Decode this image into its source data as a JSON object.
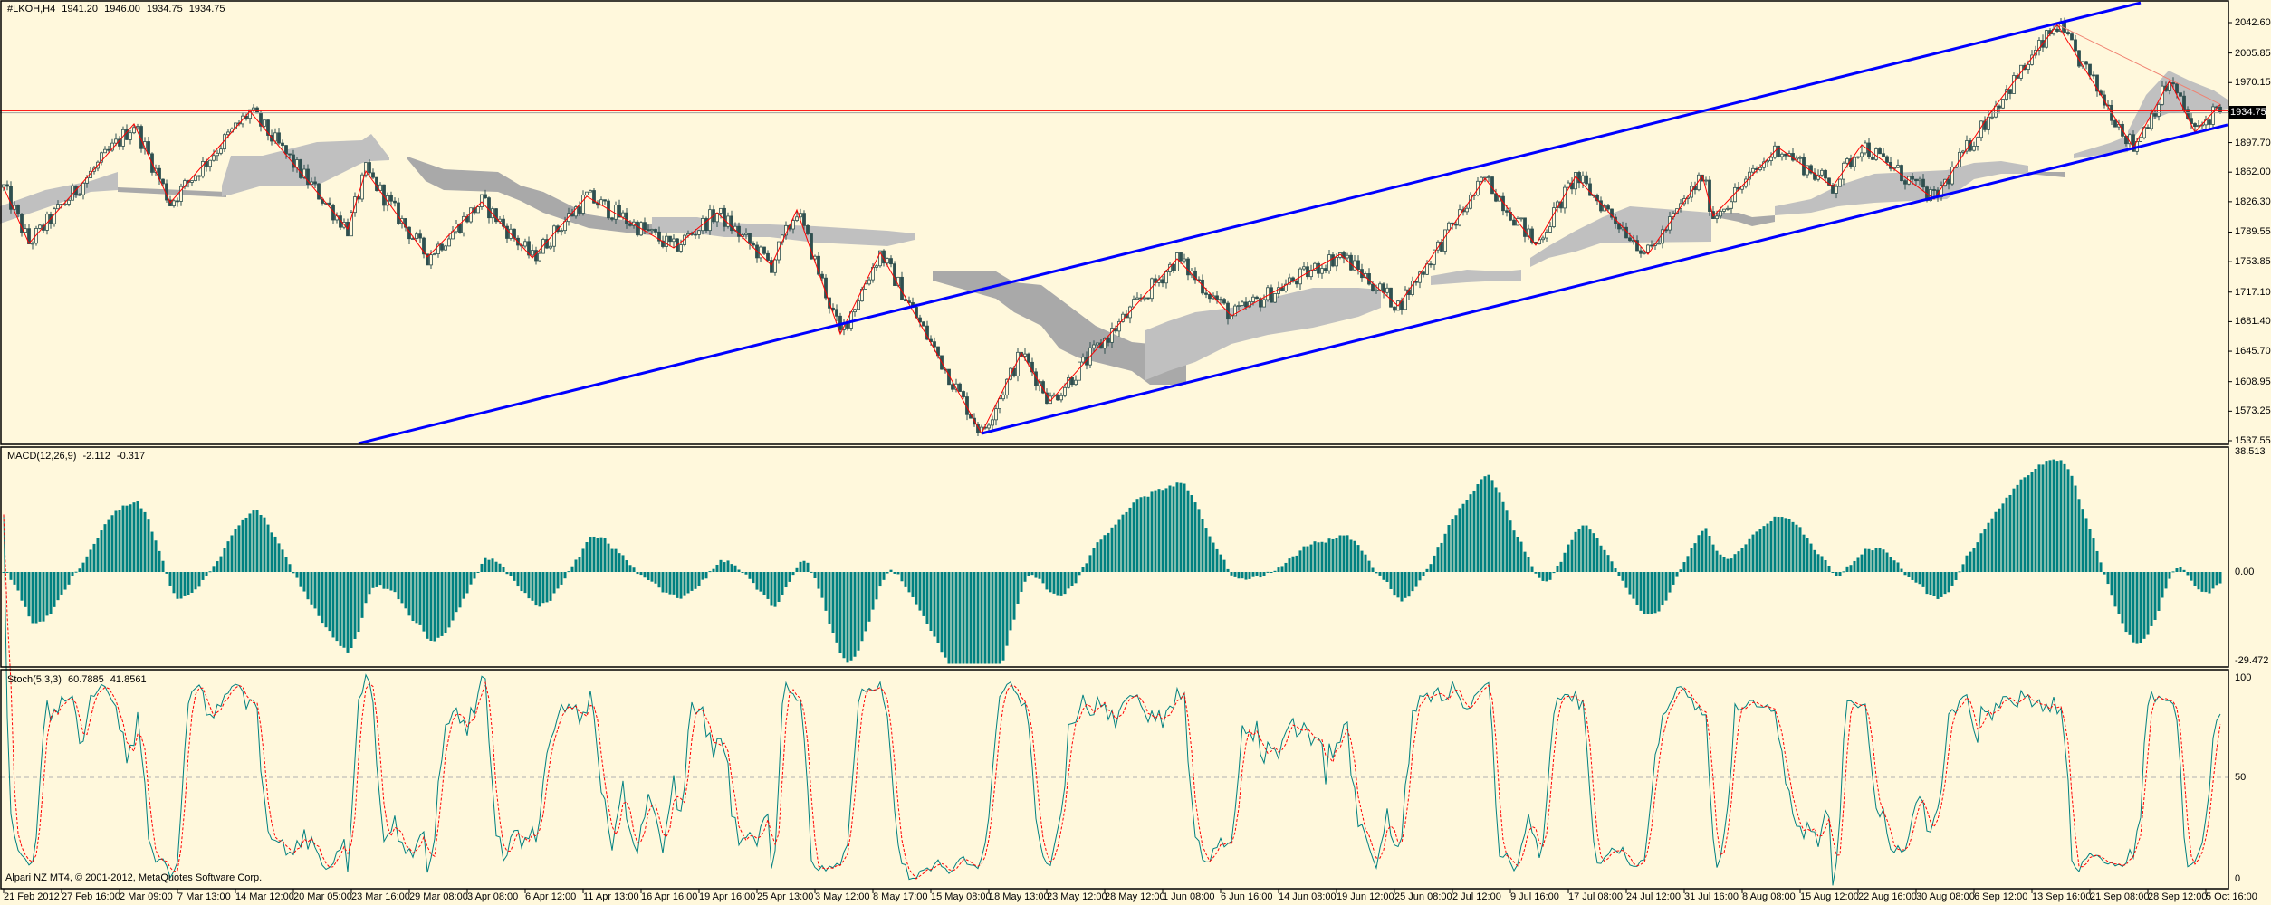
{
  "header": {
    "symbol": "#LKOH,H4",
    "open": "1941.20",
    "high": "1946.00",
    "low": "1934.75",
    "close": "1934.75"
  },
  "copyright": "Alpari NZ MT4, © 2001-2012, MetaQuotes Software Corp.",
  "colors": {
    "background": "#fff8dc",
    "candle": "#2f4f4f",
    "zigzag": "#ff0000",
    "channel": "#0000ff",
    "price_line": "#ff0000",
    "cloud_light": "#c0c0c0",
    "cloud_dark": "#a9a9a9",
    "macd": "#008080",
    "stoch_main": "#008080",
    "stoch_signal": "#ff0000"
  },
  "chart_data": [
    {
      "type": "candlestick",
      "title": "#LKOH,H4",
      "ylim": [
        1537.55,
        2042.6
      ],
      "y_ticks": [
        "2042.60",
        "2005.85",
        "1970.15",
        "1934.75",
        "1897.70",
        "1862.00",
        "1826.30",
        "1789.55",
        "1753.85",
        "1717.10",
        "1681.40",
        "1645.70",
        "1608.95",
        "1573.25",
        "1537.55"
      ],
      "current_price": "1934.75",
      "x_tick_labels": [
        "21 Feb 2012",
        "27 Feb 16:00",
        "2 Mar 09:00",
        "7 Mar 13:00",
        "14 Mar 12:00",
        "20 Mar 05:00",
        "23 Mar 16:00",
        "29 Mar 08:00",
        "3 Apr 08:00",
        "6 Apr 12:00",
        "11 Apr 13:00",
        "16 Apr 16:00",
        "19 Apr 16:00",
        "25 Apr 13:00",
        "3 May 12:00",
        "8 May 17:00",
        "15 May 08:00",
        "18 May 13:00",
        "23 May 12:00",
        "28 May 12:00",
        "1 Jun 08:00",
        "6 Jun 16:00",
        "14 Jun 08:00",
        "19 Jun 12:00",
        "25 Jun 08:00",
        "2 Jul 12:00",
        "9 Jul 16:00",
        "17 Jul 08:00",
        "24 Jul 12:00",
        "31 Jul 16:00",
        "8 Aug 08:00",
        "15 Aug 12:00",
        "22 Aug 16:00",
        "30 Aug 08:00",
        "6 Sep 12:00",
        "13 Sep 16:00",
        "21 Sep 08:00",
        "28 Sep 12:00",
        "5 Oct 16:00"
      ],
      "bars_per_label": 16,
      "zigzag": [
        {
          "bar": 0,
          "price": 1843.6
        },
        {
          "bar": 7,
          "price": 1775.9
        },
        {
          "bar": 36,
          "price": 1920.2
        },
        {
          "bar": 46,
          "price": 1825.1
        },
        {
          "bar": 68,
          "price": 1935.5
        },
        {
          "bar": 95,
          "price": 1793.3
        },
        {
          "bar": 100,
          "price": 1863.3
        },
        {
          "bar": 117,
          "price": 1759.5
        },
        {
          "bar": 132,
          "price": 1826.1
        },
        {
          "bar": 146,
          "price": 1758.4
        },
        {
          "bar": 161,
          "price": 1832.7
        },
        {
          "bar": 185,
          "price": 1770.4
        },
        {
          "bar": 197,
          "price": 1813.0
        },
        {
          "bar": 212,
          "price": 1749.6
        },
        {
          "bar": 219,
          "price": 1816.3
        },
        {
          "bar": 231,
          "price": 1666.5
        },
        {
          "bar": 242,
          "price": 1764.9
        },
        {
          "bar": 270,
          "price": 1546.3
        },
        {
          "bar": 281,
          "price": 1643.6
        },
        {
          "bar": 289,
          "price": 1585.6
        },
        {
          "bar": 324,
          "price": 1757.3
        },
        {
          "bar": 339,
          "price": 1688.4
        },
        {
          "bar": 369,
          "price": 1762.7
        },
        {
          "bar": 385,
          "price": 1700.4
        },
        {
          "bar": 409,
          "price": 1854.6
        },
        {
          "bar": 423,
          "price": 1773.7
        },
        {
          "bar": 434,
          "price": 1856.8
        },
        {
          "bar": 454,
          "price": 1762.7
        },
        {
          "bar": 469,
          "price": 1857.8
        },
        {
          "bar": 472,
          "price": 1808.7
        },
        {
          "bar": 490,
          "price": 1891.7
        },
        {
          "bar": 505,
          "price": 1844.7
        },
        {
          "bar": 513,
          "price": 1895.0
        },
        {
          "bar": 533,
          "price": 1829.4
        },
        {
          "bar": 549,
          "price": 1936.6
        },
        {
          "bar": 567,
          "price": 2040.4
        },
        {
          "bar": 588,
          "price": 1891.7
        },
        {
          "bar": 598,
          "price": 1972.6
        },
        {
          "bar": 605,
          "price": 1910.3
        },
        {
          "bar": 612,
          "price": 1944.0
        }
      ],
      "channel": {
        "upper": [
          {
            "bar": 98,
            "price": 1534.3
          },
          {
            "bar": 590,
            "price": 2066.6
          }
        ],
        "lower": [
          {
            "bar": 270,
            "price": 1546.3
          },
          {
            "bar": 614,
            "price": 1919.1
          }
        ]
      },
      "trendline": [
        {
          "bar": 567,
          "price": 2040.4
        },
        {
          "bar": 612,
          "price": 1944.0
        }
      ],
      "horizontal_line": 1934.75
    },
    {
      "type": "bar",
      "title": "MACD(12,26,9)",
      "values_shown": [
        "-2.112",
        "-0.317"
      ],
      "ylim": [
        -29.472,
        38.513
      ],
      "y_ticks": [
        "38.513",
        "0.00",
        "-29.472"
      ]
    },
    {
      "type": "line",
      "title": "Stoch(5,3,3)",
      "values_shown": [
        "60.7885",
        "41.8561"
      ],
      "ylim": [
        0,
        100
      ],
      "y_ticks": [
        "100",
        "50",
        "0"
      ],
      "series": [
        {
          "style": "solid"
        },
        {
          "style": "dashed"
        }
      ]
    }
  ]
}
